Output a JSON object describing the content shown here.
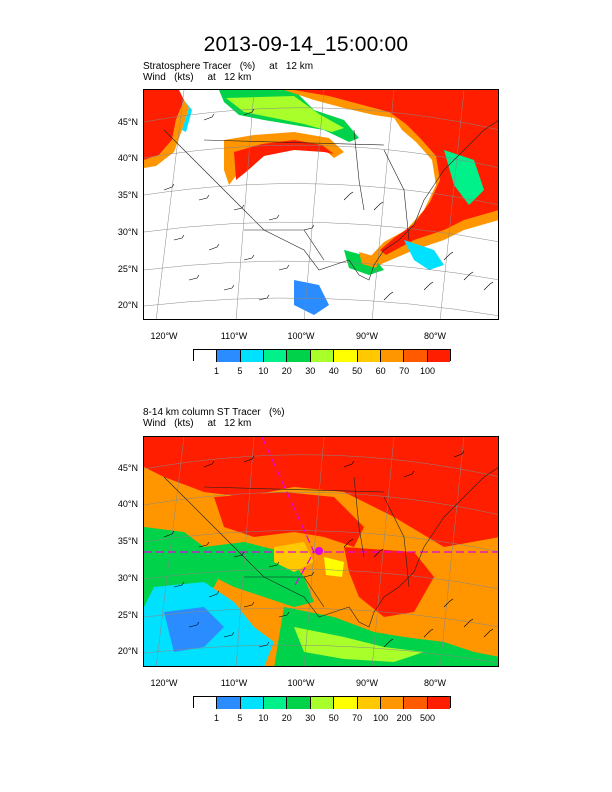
{
  "title": "2013-09-14_15:00:00",
  "panels": [
    {
      "subtitle_line1": "Stratosphere Tracer   (%)     at   12 km",
      "subtitle_line2": "Wind   (kts)     at   12 km",
      "lat_labels": [
        "45°N",
        "40°N",
        "35°N",
        "30°N",
        "25°N",
        "20°N"
      ],
      "lon_labels": [
        "120°W",
        "110°W",
        "100°W",
        "90°W",
        "80°W"
      ],
      "colorbar_labels": [
        "1",
        "5",
        "10",
        "20",
        "30",
        "40",
        "50",
        "60",
        "70",
        "100"
      ],
      "colorbar_colors": [
        "#ffffff",
        "#2a8cff",
        "#00e0ff",
        "#00f08a",
        "#00d24a",
        "#a8ff2a",
        "#ffff00",
        "#ffc800",
        "#ff9600",
        "#ff5a00",
        "#ff1e00"
      ]
    },
    {
      "subtitle_line1": "8-14 km column ST Tracer   (%)",
      "subtitle_line2": "Wind   (kts)     at   12 km",
      "lat_labels": [
        "45°N",
        "40°N",
        "35°N",
        "30°N",
        "25°N",
        "20°N"
      ],
      "lon_labels": [
        "120°W",
        "110°W",
        "100°W",
        "90°W",
        "80°W"
      ],
      "colorbar_labels": [
        "1",
        "5",
        "10",
        "20",
        "30",
        "50",
        "70",
        "100",
        "200",
        "500"
      ],
      "colorbar_colors": [
        "#ffffff",
        "#2a8cff",
        "#00e0ff",
        "#00f08a",
        "#00d24a",
        "#a8ff2a",
        "#ffff00",
        "#ffc800",
        "#ff9600",
        "#ff5a00",
        "#ff1e00"
      ]
    }
  ]
}
